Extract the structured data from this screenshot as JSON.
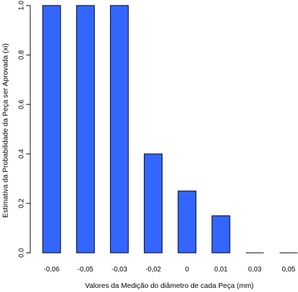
{
  "chart_data": {
    "type": "bar",
    "title": "",
    "xlabel": "Valores da Medição do diâmetro de cada Peça (mm)",
    "ylabel": "Estimativa da Probabilidade da Peça ser Aprovada (xi)",
    "categories": [
      "-0,06",
      "-0,05",
      "-0,03",
      "-0,02",
      "0",
      "0,01",
      "0,03",
      "0,05"
    ],
    "values": [
      1.0,
      1.0,
      1.0,
      0.4,
      0.25,
      0.15,
      0.0,
      0.0
    ],
    "ylim": [
      0,
      1
    ],
    "yticks": [
      0.0,
      0.2,
      0.4,
      0.6,
      0.8,
      1.0
    ],
    "ytick_labels": [
      "0.0",
      "0.2",
      "0.4",
      "0.6",
      "0.8",
      "1.0"
    ],
    "grid": false,
    "legend": "none",
    "bar_color": "#3366FF",
    "bar_edge_color": "#000000"
  }
}
